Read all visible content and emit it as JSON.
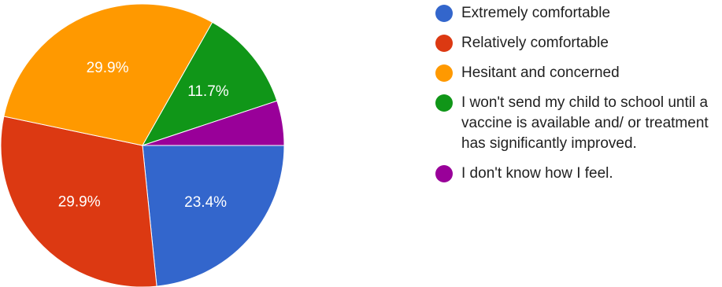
{
  "chart_data": {
    "type": "pie",
    "title": "",
    "slices": [
      {
        "label": "Extremely comfortable",
        "value": 23.4,
        "data_label": "23.4%",
        "color": "#3366cc"
      },
      {
        "label": "Relatively comfortable",
        "value": 29.9,
        "data_label": "29.9%",
        "color": "#dc3912"
      },
      {
        "label": "Hesitant and concerned",
        "value": 29.9,
        "data_label": "29.9%",
        "color": "#ff9900"
      },
      {
        "label": "I won't send my child to school until a vaccine is available and/ or treatment has significantly improved.",
        "value": 11.7,
        "data_label": "11.7%",
        "color": "#109618"
      },
      {
        "label": "I don't know how I feel.",
        "value": 5.1,
        "data_label": "",
        "color": "#990099"
      }
    ],
    "start_direction": "east",
    "direction": "clockwise",
    "legend_position": "right"
  }
}
